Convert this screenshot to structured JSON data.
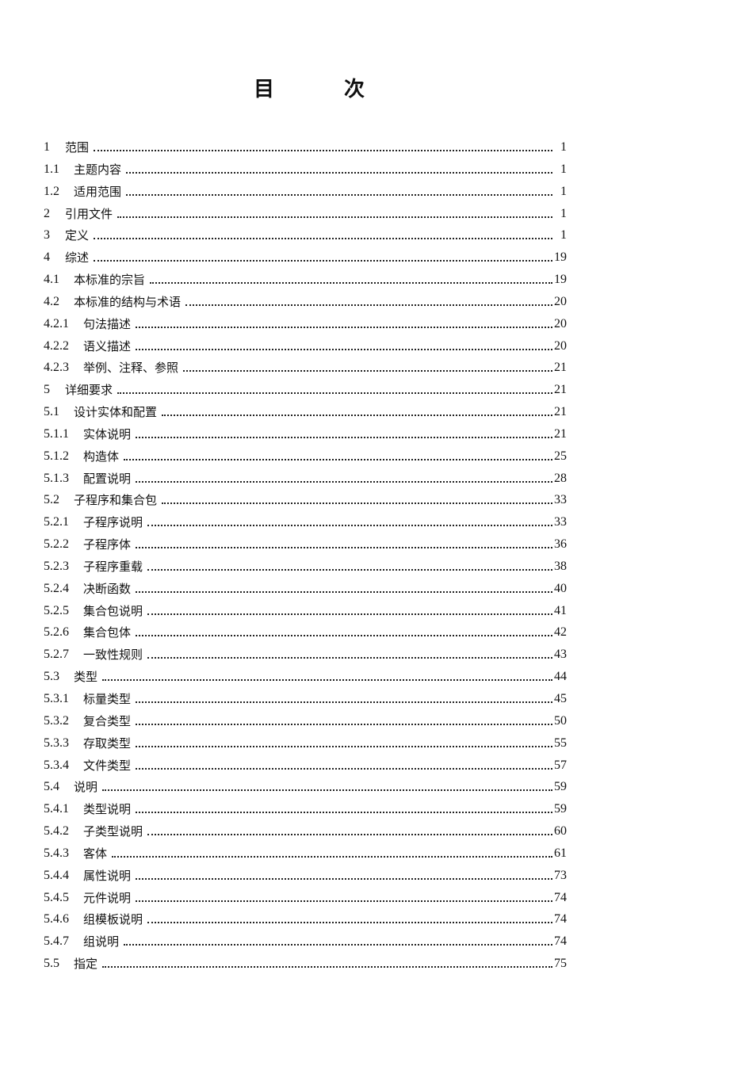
{
  "heading": {
    "char1": "目",
    "char2": "次"
  },
  "entries": [
    {
      "num": "1",
      "title": "范围",
      "page": "1",
      "level": 1
    },
    {
      "num": "1.1",
      "title": "主题内容",
      "page": "1",
      "level": 2
    },
    {
      "num": "1.2",
      "title": "适用范围",
      "page": "1",
      "level": 2
    },
    {
      "num": "2",
      "title": "引用文件",
      "page": "1",
      "level": 1
    },
    {
      "num": "3",
      "title": "定义",
      "page": "1",
      "level": 1
    },
    {
      "num": "4",
      "title": "综述",
      "page": "19",
      "level": 1
    },
    {
      "num": "4.1",
      "title": "本标准的宗旨",
      "page": "19",
      "level": 2
    },
    {
      "num": "4.2",
      "title": "本标准的结构与术语",
      "page": "20",
      "level": 2
    },
    {
      "num": "4.2.1",
      "title": "句法描述",
      "page": "20",
      "level": 3
    },
    {
      "num": "4.2.2",
      "title": "语义描述",
      "page": "20",
      "level": 3
    },
    {
      "num": "4.2.3",
      "title": "举例、注释、参照",
      "page": "21",
      "level": 3
    },
    {
      "num": "5",
      "title": "详细要求",
      "page": "21",
      "level": 1
    },
    {
      "num": "5.1",
      "title": "设计实体和配置",
      "page": "21",
      "level": 2
    },
    {
      "num": "5.1.1",
      "title": "实体说明",
      "page": "21",
      "level": 3
    },
    {
      "num": "5.1.2",
      "title": "构造体",
      "page": "25",
      "level": 3
    },
    {
      "num": "5.1.3",
      "title": "配置说明",
      "page": "28",
      "level": 3
    },
    {
      "num": "5.2",
      "title": "子程序和集合包",
      "page": "33",
      "level": 2
    },
    {
      "num": "5.2.1",
      "title": "子程序说明",
      "page": "33",
      "level": 3
    },
    {
      "num": "5.2.2",
      "title": "子程序体",
      "page": "36",
      "level": 3
    },
    {
      "num": "5.2.3",
      "title": "子程序重载",
      "page": "38",
      "level": 3
    },
    {
      "num": "5.2.4",
      "title": "决断函数",
      "page": "40",
      "level": 3
    },
    {
      "num": "5.2.5",
      "title": "集合包说明",
      "page": "41",
      "level": 3
    },
    {
      "num": "5.2.6",
      "title": "集合包体",
      "page": "42",
      "level": 3
    },
    {
      "num": "5.2.7",
      "title": "一致性规则",
      "page": "43",
      "level": 3
    },
    {
      "num": "5.3",
      "title": "类型",
      "page": "44",
      "level": 2
    },
    {
      "num": "5.3.1",
      "title": "标量类型",
      "page": "45",
      "level": 3
    },
    {
      "num": "5.3.2",
      "title": "复合类型",
      "page": "50",
      "level": 3
    },
    {
      "num": "5.3.3",
      "title": "存取类型",
      "page": "55",
      "level": 3
    },
    {
      "num": "5.3.4",
      "title": "文件类型",
      "page": "57",
      "level": 3
    },
    {
      "num": "5.4",
      "title": "说明",
      "page": "59",
      "level": 2
    },
    {
      "num": "5.4.1",
      "title": "类型说明",
      "page": "59",
      "level": 3
    },
    {
      "num": "5.4.2",
      "title": "子类型说明",
      "page": "60",
      "level": 3
    },
    {
      "num": "5.4.3",
      "title": "客体",
      "page": "61",
      "level": 3
    },
    {
      "num": "5.4.4",
      "title": "属性说明",
      "page": "73",
      "level": 3
    },
    {
      "num": "5.4.5",
      "title": "元件说明",
      "page": "74",
      "level": 3
    },
    {
      "num": "5.4.6",
      "title": "组模板说明",
      "page": "74",
      "level": 3
    },
    {
      "num": "5.4.7",
      "title": "组说明",
      "page": "74",
      "level": 3
    },
    {
      "num": "5.5",
      "title": "指定",
      "page": "75",
      "level": 2
    }
  ]
}
